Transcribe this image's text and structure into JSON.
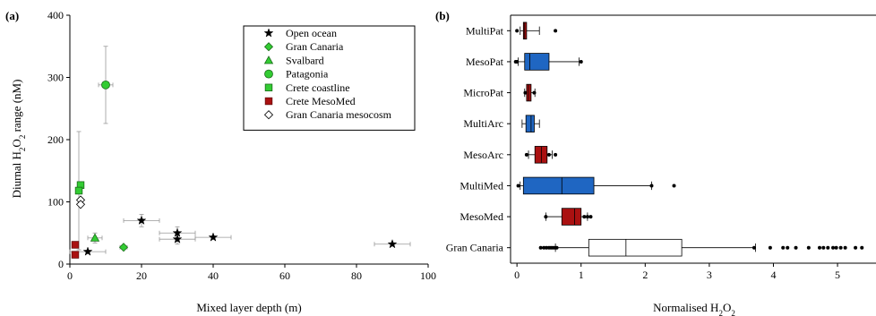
{
  "chart_data": [
    {
      "type": "scatter",
      "panel_label": "(a)",
      "xlabel": "Mixed layer depth (m)",
      "ylabel_parts": [
        "Diurnal H",
        "2",
        "O",
        "2",
        " range (nM)"
      ],
      "xlim": [
        0,
        100
      ],
      "ylim": [
        0,
        400
      ],
      "xticks": [
        0,
        20,
        40,
        60,
        80,
        100
      ],
      "yticks": [
        0,
        100,
        200,
        300,
        400
      ],
      "legend_position": "top-right",
      "series": [
        {
          "name": "Open ocean",
          "marker": "star",
          "color": "#000000",
          "points": [
            {
              "x": 5,
              "y": 20,
              "xerr": 5,
              "yerr": 0
            },
            {
              "x": 20,
              "y": 70,
              "xerr": 5,
              "yerr": 10
            },
            {
              "x": 30,
              "y": 50,
              "xerr": 5,
              "yerr": 10
            },
            {
              "x": 30,
              "y": 40,
              "xerr": 5,
              "yerr": 8
            },
            {
              "x": 40,
              "y": 43,
              "xerr": 5,
              "yerr": 0
            },
            {
              "x": 90,
              "y": 32,
              "xerr": 5,
              "yerr": 0
            }
          ]
        },
        {
          "name": "Gran Canaria",
          "marker": "diamond",
          "color": "#33cc33",
          "points": [
            {
              "x": 15,
              "y": 27,
              "xerr": 1,
              "yerr": 0
            }
          ]
        },
        {
          "name": "Svalbard",
          "marker": "triangle",
          "color": "#33cc33",
          "points": [
            {
              "x": 7,
              "y": 42,
              "xerr": 2,
              "yerr": 8
            }
          ]
        },
        {
          "name": "Patagonia",
          "marker": "circle",
          "color": "#33cc33",
          "points": [
            {
              "x": 10,
              "y": 288,
              "xerr": 2,
              "yerr": 62
            }
          ]
        },
        {
          "name": "Crete coastline",
          "marker": "square",
          "color": "#33cc33",
          "points": [
            {
              "x": 3,
              "y": 127,
              "xerr": 0,
              "yerr": 0
            },
            {
              "x": 2.5,
              "y": 118,
              "xerr": 0,
              "yerr": 95
            }
          ]
        },
        {
          "name": "Crete MesoMed",
          "marker": "square",
          "color": "#aa1111",
          "points": [
            {
              "x": 1.5,
              "y": 31,
              "xerr": 0,
              "yerr": 0
            },
            {
              "x": 1.5,
              "y": 15,
              "xerr": 0,
              "yerr": 0
            }
          ]
        },
        {
          "name": "Gran Canaria mesocosm",
          "marker": "diamond-open",
          "color": "#000000",
          "points": [
            {
              "x": 3,
              "y": 103,
              "xerr": 0,
              "yerr": 0
            },
            {
              "x": 3,
              "y": 96,
              "xerr": 0,
              "yerr": 0
            }
          ]
        }
      ]
    },
    {
      "type": "boxplot",
      "panel_label": "(b)",
      "xlabel_parts": [
        "Normalised H",
        "2",
        "O",
        "2"
      ],
      "xlim": [
        -0.1,
        5.6
      ],
      "xticks": [
        0,
        1,
        2,
        3,
        4,
        5
      ],
      "categories": [
        "MultiPat",
        "MesoPat",
        "MicroPat",
        "MultiArc",
        "MesoArc",
        "MultiMed",
        "MesoMed",
        "Gran Canaria"
      ],
      "boxes": [
        {
          "name": "MultiPat",
          "color": "#aa1111",
          "whislo": 0.05,
          "q1": 0.1,
          "median": 0.12,
          "q3": 0.15,
          "whishi": 0.35,
          "fliers": [
            0.0,
            0.6
          ]
        },
        {
          "name": "MesoPat",
          "color": "#1f66c2",
          "whislo": 0.02,
          "q1": 0.12,
          "median": 0.2,
          "q3": 0.5,
          "whishi": 0.97,
          "fliers": [
            -0.02,
            0.0,
            1.0
          ]
        },
        {
          "name": "MicroPat",
          "color": "#aa1111",
          "whislo": 0.12,
          "q1": 0.15,
          "median": 0.18,
          "q3": 0.22,
          "whishi": 0.28,
          "fliers": [
            0.13,
            0.27
          ]
        },
        {
          "name": "MultiArc",
          "color": "#1f66c2",
          "whislo": 0.08,
          "q1": 0.14,
          "median": 0.22,
          "q3": 0.27,
          "whishi": 0.35,
          "fliers": []
        },
        {
          "name": "MesoArc",
          "color": "#aa1111",
          "whislo": 0.18,
          "q1": 0.28,
          "median": 0.38,
          "q3": 0.47,
          "whishi": 0.55,
          "fliers": [
            0.15,
            0.5,
            0.6
          ]
        },
        {
          "name": "MultiMed",
          "color": "#1f66c2",
          "whislo": 0.05,
          "q1": 0.1,
          "median": 0.7,
          "q3": 1.2,
          "whishi": 2.1,
          "fliers": [
            0.02,
            2.1,
            2.45
          ]
        },
        {
          "name": "MesoMed",
          "color": "#aa1111",
          "whislo": 0.45,
          "q1": 0.7,
          "median": 0.9,
          "q3": 1.0,
          "whishi": 1.1,
          "fliers": [
            0.45,
            1.05,
            1.1,
            1.15
          ]
        },
        {
          "name": "Gran Canaria",
          "color": "#ffffff",
          "whislo": 0.6,
          "q1": 1.12,
          "median": 1.7,
          "q3": 2.57,
          "whishi": 3.72,
          "fliers": [
            0.37,
            0.42,
            0.46,
            0.5,
            0.53,
            0.56,
            0.59,
            0.62,
            3.7,
            3.95,
            4.15,
            4.22,
            4.35,
            4.55,
            4.72,
            4.78,
            4.85,
            4.93,
            4.98,
            5.05,
            5.12,
            5.28,
            5.38
          ]
        }
      ]
    }
  ]
}
